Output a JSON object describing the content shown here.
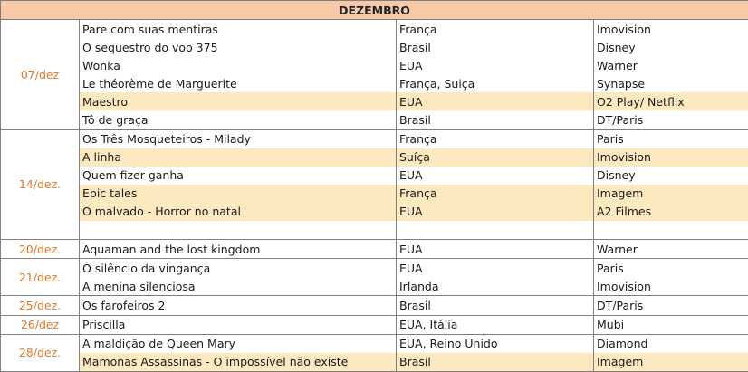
{
  "title": "DEZEMBRO",
  "groups": [
    {
      "date": "07/dez",
      "rows": [
        {
          "film": "Pare com suas mentiras",
          "country": "França",
          "distributor": "Imovision",
          "highlight": false
        },
        {
          "film": "O sequestro do voo 375",
          "country": "Brasil",
          "distributor": "Disney",
          "highlight": false
        },
        {
          "film": "Wonka",
          "country": "EUA",
          "distributor": "Warner",
          "highlight": false
        },
        {
          "film": "Le théorème de Marguerite",
          "country": "França, Suiça",
          "distributor": "Synapse",
          "highlight": false
        },
        {
          "film": "Maestro",
          "country": "EUA",
          "distributor": "O2 Play/ Netflix",
          "highlight": true
        },
        {
          "film": "Tô de graça",
          "country": "Brasil",
          "distributor": "DT/Paris",
          "highlight": false
        }
      ]
    },
    {
      "date": "14/dez.",
      "rows": [
        {
          "film": "Os Três Mosqueteiros - Milady",
          "country": "França",
          "distributor": "Paris",
          "highlight": false
        },
        {
          "film": "A linha",
          "country": "Suíça",
          "distributor": "Imovision",
          "highlight": true
        },
        {
          "film": "Quem fizer ganha",
          "country": "EUA",
          "distributor": "Disney",
          "highlight": false
        },
        {
          "film": "Epic tales",
          "country": "França",
          "distributor": "Imagem",
          "highlight": true
        },
        {
          "film": "O malvado - Horror no natal",
          "country": "EUA",
          "distributor": "A2 Filmes",
          "highlight": true
        },
        {
          "film": "",
          "country": "",
          "distributor": "",
          "highlight": false
        }
      ]
    },
    {
      "date": "20/dez.",
      "rows": [
        {
          "film": "Aquaman and the lost kingdom",
          "country": "EUA",
          "distributor": "Warner",
          "highlight": false
        }
      ]
    },
    {
      "date": "21/dez.",
      "rows": [
        {
          "film": "O silêncio da vingança",
          "country": "EUA",
          "distributor": "Paris",
          "highlight": false
        },
        {
          "film": "A menina silenciosa",
          "country": "Irlanda",
          "distributor": "Imovision",
          "highlight": false
        }
      ]
    },
    {
      "date": "25/dez.",
      "rows": [
        {
          "film": "Os farofeiros 2",
          "country": "Brasil",
          "distributor": "DT/Paris",
          "highlight": false
        }
      ]
    },
    {
      "date": "26/dez",
      "rows": [
        {
          "film": "Priscilla",
          "country": "EUA, Itália",
          "distributor": "Mubi",
          "highlight": false
        }
      ]
    },
    {
      "date": "28/dez.",
      "rows": [
        {
          "film": "A maldição de Queen Mary",
          "country": "EUA, Reino Unido",
          "distributor": "Diamond",
          "highlight": false
        },
        {
          "film": "Mamonas Assassinas - O impossível não existe",
          "country": "Brasil",
          "distributor": "Imagem",
          "highlight": true
        }
      ]
    }
  ]
}
